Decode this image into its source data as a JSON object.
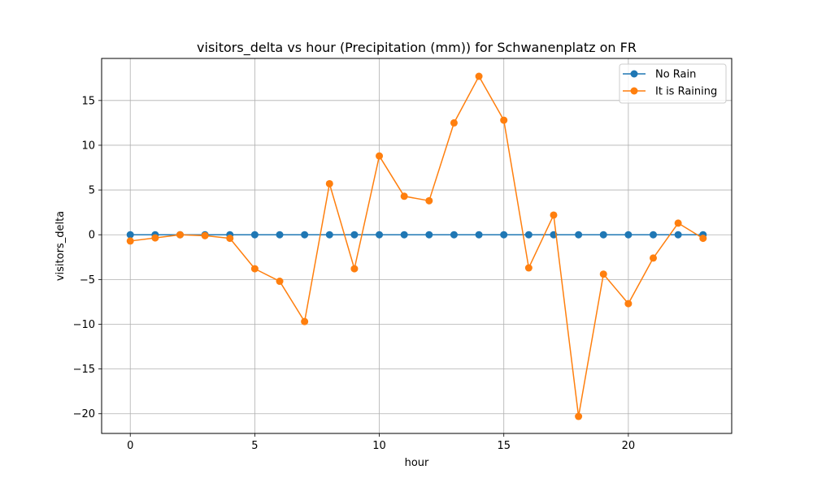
{
  "chart_data": {
    "type": "line",
    "title": "visitors_delta vs hour (Precipitation (mm)) for Schwanenplatz on FR",
    "xlabel": "hour",
    "ylabel": "visitors_delta",
    "x": [
      0,
      1,
      2,
      3,
      4,
      5,
      6,
      7,
      8,
      9,
      10,
      11,
      12,
      13,
      14,
      15,
      16,
      17,
      18,
      19,
      20,
      21,
      22,
      23
    ],
    "xlim": [
      -1.15,
      24.15
    ],
    "ylim": [
      -22.2,
      19.7
    ],
    "xticks": [
      0,
      5,
      10,
      15,
      20
    ],
    "yticks": [
      -20,
      -15,
      -10,
      -5,
      0,
      5,
      10,
      15
    ],
    "grid": true,
    "legend_position": "top-right",
    "series": [
      {
        "name": "No Rain",
        "color": "#1f77b4",
        "marker": "circle",
        "values": [
          0,
          0,
          0,
          0,
          0,
          0,
          0,
          0,
          0,
          0,
          0,
          0,
          0,
          0,
          0,
          0,
          0,
          0,
          0,
          0,
          0,
          0,
          0,
          0
        ]
      },
      {
        "name": "It is Raining",
        "color": "#ff7f0e",
        "marker": "circle",
        "values": [
          -0.7,
          -0.35,
          0.0,
          -0.1,
          -0.4,
          -3.8,
          -5.2,
          -9.7,
          5.7,
          -3.8,
          8.8,
          4.3,
          3.8,
          12.5,
          17.7,
          12.8,
          -3.7,
          2.2,
          -20.3,
          -4.4,
          -7.7,
          -2.6,
          1.3,
          -0.4
        ]
      }
    ]
  }
}
